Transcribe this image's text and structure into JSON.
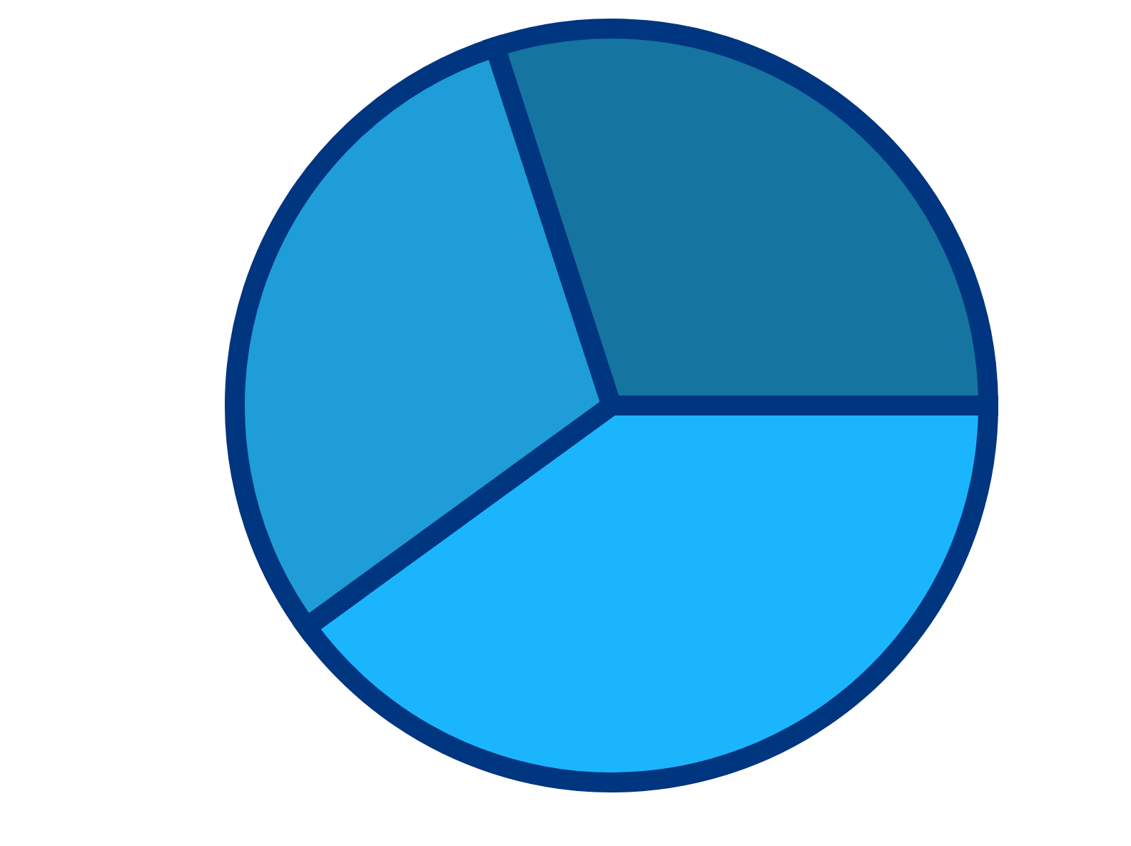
{
  "chart_data": {
    "type": "pie",
    "categories": [
      null,
      null,
      null
    ],
    "values": [
      40,
      30,
      30
    ],
    "colors": [
      "#1bb5fd",
      "#1e9dd8",
      "#1574a0"
    ]
  }
}
